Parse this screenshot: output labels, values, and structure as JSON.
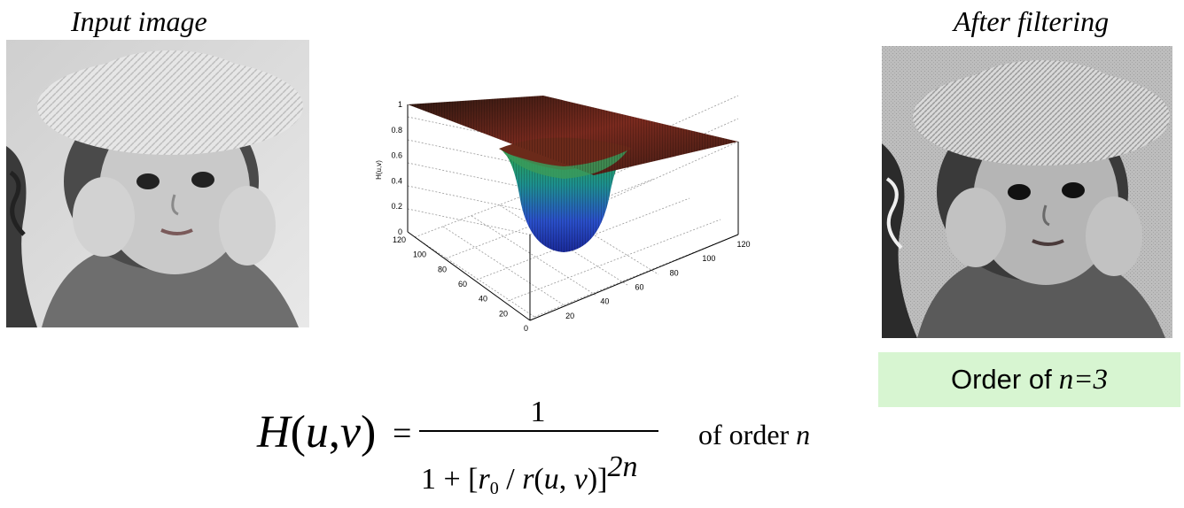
{
  "captions": {
    "input": "Input image",
    "output": "After filtering"
  },
  "order_box": {
    "prefix": "Order of",
    "value": "n=3"
  },
  "formula": {
    "lhs": "H(u,v)",
    "equals": "=",
    "numerator": "1",
    "denominator_text": "1 + [r0 / r(u,v)]^2n",
    "suffix_text": "of order",
    "suffix_var": "n"
  },
  "chart_data": {
    "type": "surface3d",
    "zlabel": "H(u,v)",
    "z_ticks": [
      "0",
      "0.2",
      "0.4",
      "0.6",
      "0.8",
      "1"
    ],
    "x_ticks": [
      "0",
      "20",
      "40",
      "60",
      "80",
      "100",
      "120"
    ],
    "y_ticks": [
      "0",
      "20",
      "40",
      "60",
      "80",
      "100",
      "120"
    ],
    "zlim": [
      0,
      1
    ],
    "xlim": [
      0,
      120
    ],
    "ylim": [
      0,
      120
    ],
    "grid": true
  },
  "colors": {
    "highlight_box": "#d7f5d1"
  }
}
